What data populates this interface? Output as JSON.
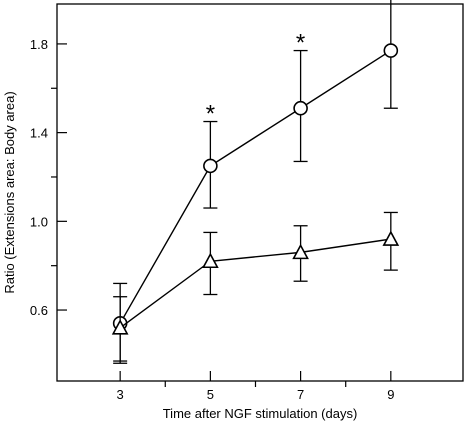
{
  "chart_data": {
    "type": "line",
    "title": "",
    "xlabel": "Time after NGF stimulation (days)",
    "ylabel": "Ratio (Extensions area: Body area)",
    "x": [
      3,
      5,
      7,
      9
    ],
    "xlim": [
      1.6,
      10.6
    ],
    "ylim": [
      0.28,
      1.98
    ],
    "x_ticks": [
      3,
      5,
      7,
      9
    ],
    "x_minor_ticks": [
      4,
      6,
      8
    ],
    "x_tick_labels": [
      "3",
      "5",
      "7",
      "9"
    ],
    "y_ticks": [
      0.6,
      1.0,
      1.4,
      1.8
    ],
    "y_minor_ticks": [
      0.8,
      1.2,
      1.6
    ],
    "y_tick_labels": [
      "0.6",
      "1.0",
      "1.4",
      "1.8"
    ],
    "grid": false,
    "series": [
      {
        "marker": "circle",
        "values": [
          0.54,
          1.25,
          1.51,
          1.77
        ],
        "err_upper": [
          0.72,
          1.45,
          1.77,
          2.02
        ],
        "err_lower": [
          0.37,
          1.06,
          1.27,
          1.51
        ]
      },
      {
        "marker": "triangle",
        "values": [
          0.52,
          0.82,
          0.86,
          0.92
        ],
        "err_upper": [
          0.66,
          0.95,
          0.98,
          1.04
        ],
        "err_lower": [
          0.36,
          0.67,
          0.73,
          0.78
        ]
      }
    ],
    "annotations": [
      {
        "text": "*",
        "x": 5,
        "y": 1.5
      },
      {
        "text": "*",
        "x": 7,
        "y": 1.82
      },
      {
        "text": "*",
        "x": 9,
        "y": 2.06
      }
    ]
  }
}
